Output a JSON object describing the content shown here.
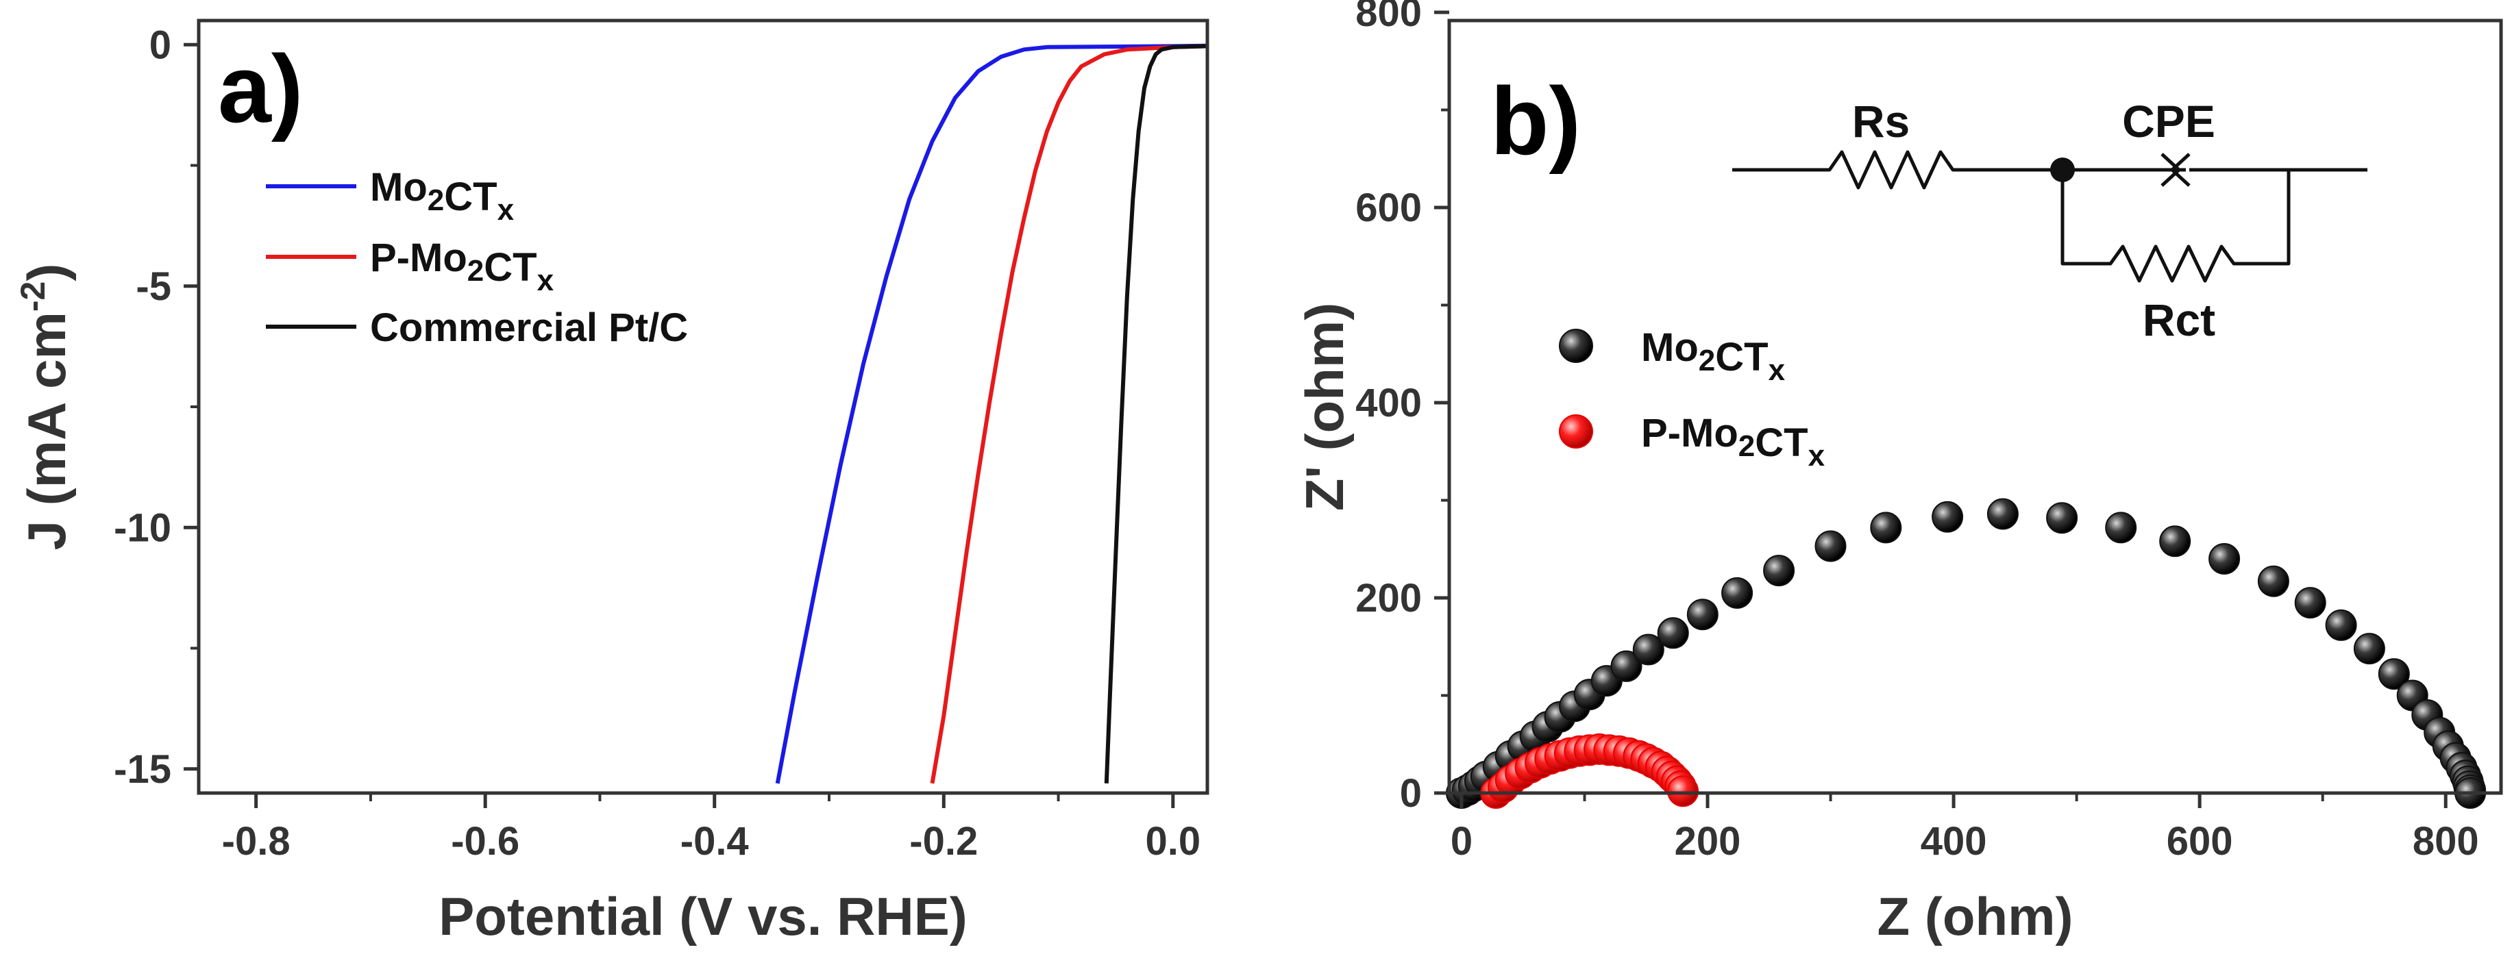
{
  "chart_data": [
    {
      "type": "line",
      "panel_label": "a)",
      "xlabel": "Potential (V vs. RHE)",
      "ylabel": "J (mA cm",
      "ylabel_sup": "-2",
      "ylabel_end": ")",
      "xlim": [
        -0.85,
        0.03
      ],
      "ylim": [
        -15.5,
        0.5
      ],
      "xticks": [
        "-0.8",
        "-0.6",
        "-0.4",
        "-0.2",
        "0.0"
      ],
      "yticks": [
        "0",
        "-5",
        "-10",
        "-15"
      ],
      "legend_position": "top-left",
      "series": [
        {
          "name": "Mo2CTx",
          "legend": {
            "main": "Mo",
            "sub1": "2",
            "mid": "CT",
            "sub2": "x"
          },
          "color": "#1a1ae6",
          "x": [
            -0.345,
            -0.33,
            -0.31,
            -0.29,
            -0.27,
            -0.25,
            -0.23,
            -0.21,
            -0.19,
            -0.17,
            -0.15,
            -0.13,
            -0.11,
            0.0,
            0.03
          ],
          "y": [
            -15.3,
            -13.4,
            -11.0,
            -8.7,
            -6.6,
            -4.8,
            -3.2,
            -2.0,
            -1.1,
            -0.55,
            -0.25,
            -0.1,
            -0.05,
            -0.03,
            -0.02
          ]
        },
        {
          "name": "P-Mo2CTx",
          "legend": {
            "main": "P-Mo",
            "sub1": "2",
            "mid": "CT",
            "sub2": "x"
          },
          "color": "#e61a1a",
          "x": [
            -0.21,
            -0.2,
            -0.19,
            -0.18,
            -0.17,
            -0.16,
            -0.15,
            -0.14,
            -0.13,
            -0.12,
            -0.11,
            -0.1,
            -0.09,
            -0.08,
            -0.06,
            -0.04,
            0.0,
            0.03
          ],
          "y": [
            -15.3,
            -13.9,
            -12.2,
            -10.5,
            -8.9,
            -7.4,
            -6.0,
            -4.7,
            -3.6,
            -2.6,
            -1.8,
            -1.2,
            -0.75,
            -0.45,
            -0.2,
            -0.1,
            -0.05,
            -0.03
          ]
        },
        {
          "name": "Commercial Pt/C",
          "legend": {
            "main": "Commercial Pt/C",
            "sub1": "",
            "mid": "",
            "sub2": ""
          },
          "color": "#111111",
          "x": [
            -0.058,
            -0.055,
            -0.05,
            -0.045,
            -0.04,
            -0.035,
            -0.03,
            -0.025,
            -0.02,
            -0.015,
            -0.01,
            0.0,
            0.03
          ],
          "y": [
            -15.3,
            -13.5,
            -10.6,
            -7.8,
            -5.2,
            -3.2,
            -1.8,
            -0.9,
            -0.45,
            -0.2,
            -0.1,
            -0.05,
            -0.03
          ]
        }
      ]
    },
    {
      "type": "scatter",
      "panel_label": "b)",
      "xlabel": "Z (ohm)",
      "ylabel": "Z' (ohm)",
      "xlim": [
        -10,
        845
      ],
      "ylim": [
        0,
        800
      ],
      "xticks": [
        "0",
        "200",
        "400",
        "600",
        "800"
      ],
      "yticks": [
        "0",
        "200",
        "400",
        "600",
        "800"
      ],
      "legend_position": "upper-left",
      "series": [
        {
          "name": "Mo2CTx",
          "legend": {
            "main": "Mo",
            "sub1": "2",
            "mid": "CT",
            "sub2": "x"
          },
          "color": "#111111",
          "x": [
            0,
            5,
            10,
            15,
            20,
            30,
            40,
            50,
            60,
            70,
            80,
            92,
            104,
            118,
            134,
            152,
            172,
            196,
            224,
            258,
            300,
            345,
            395,
            440,
            488,
            536,
            580,
            620,
            660,
            690,
            715,
            738,
            758,
            773,
            785,
            795,
            802,
            808,
            813,
            816,
            818,
            819,
            820,
            820
          ],
          "y": [
            0,
            3,
            7,
            12,
            17,
            27,
            38,
            48,
            58,
            68,
            78,
            89,
            101,
            115,
            130,
            147,
            164,
            183,
            205,
            228,
            253,
            272,
            283,
            286,
            282,
            272,
            258,
            240,
            217,
            195,
            172,
            148,
            122,
            100,
            80,
            62,
            48,
            36,
            26,
            18,
            12,
            7,
            3,
            0
          ]
        },
        {
          "name": "P-Mo2CTx",
          "legend": {
            "main": "P-Mo",
            "sub1": "2",
            "mid": "CT",
            "sub2": "x"
          },
          "color": "#e60000",
          "x": [
            28,
            34,
            40,
            48,
            56,
            64,
            72,
            80,
            88,
            96,
            104,
            112,
            120,
            128,
            136,
            144,
            150,
            156,
            162,
            167,
            171,
            175,
            178,
            180
          ],
          "y": [
            0,
            6,
            13,
            20,
            26,
            31,
            35,
            38,
            41,
            43,
            44,
            45,
            44,
            43,
            41,
            38,
            35,
            31,
            27,
            22,
            17,
            12,
            7,
            2
          ]
        }
      ],
      "circuit": {
        "rs": "Rs",
        "cpe": "CPE",
        "rct": "Rct"
      }
    }
  ]
}
